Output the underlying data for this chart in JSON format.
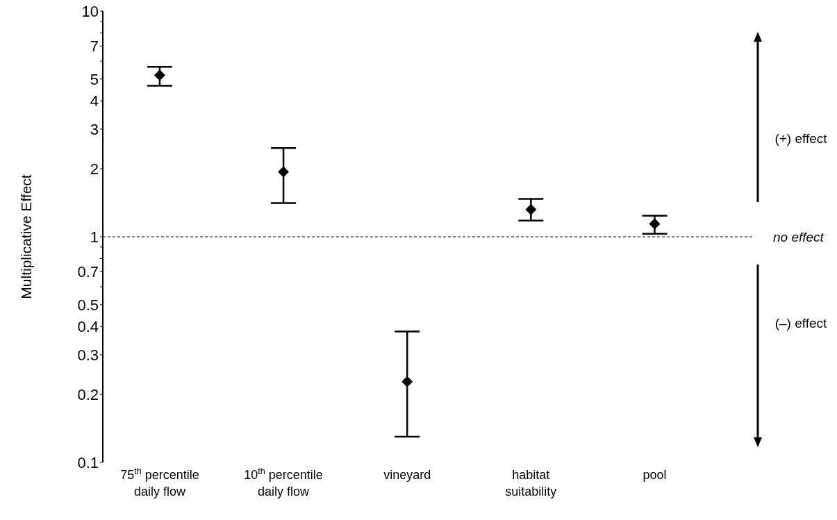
{
  "chart_data": {
    "type": "scatter",
    "ylabel": "Multiplicative Effect",
    "categories": [
      "75$^{th}$ percentile daily flow",
      "10$^{th}$ percentile daily flow",
      "vineyard",
      "habitat suitability",
      "pool"
    ],
    "values": [
      5.2,
      1.94,
      0.228,
      1.32,
      1.14
    ],
    "errors": [
      [
        4.67,
        5.66
      ],
      [
        1.41,
        2.47
      ],
      [
        0.13,
        0.38
      ],
      [
        1.18,
        1.47
      ],
      [
        1.03,
        1.24
      ]
    ],
    "color": "#000000",
    "marker": "diamond",
    "log": "y",
    "ylim": [
      0.1,
      10
    ],
    "yticks": [
      0.1,
      0.2,
      0.3,
      0.4,
      0.5,
      {
        "value": 0.6,
        "label": null
      },
      0.7,
      {
        "value": 0.8,
        "label": null
      },
      {
        "value": 0.9,
        "label": null
      },
      1,
      2,
      3,
      4,
      5,
      {
        "value": 6,
        "label": null
      },
      7,
      {
        "value": 8,
        "label": null
      },
      {
        "value": 9,
        "label": null
      },
      10
    ],
    "ref_lines": [
      {
        "axis": "y",
        "value": 1,
        "label": "no effect",
        "line_style": "dashed",
        "color": "#000000"
      }
    ],
    "annotations": [
      "(+) effect",
      "(–) effect"
    ],
    "grid": false
  }
}
